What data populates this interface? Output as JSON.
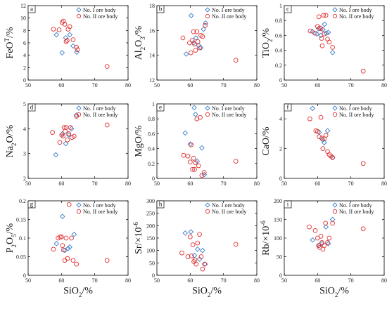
{
  "chart_data": [
    {
      "id": "a",
      "type": "scatter",
      "ylabel": {
        "base": "FeO",
        "sup": "T",
        "suffix": "/%"
      },
      "xlim": [
        50,
        80
      ],
      "ylim": [
        0,
        12
      ],
      "xticks": [
        50,
        60,
        70,
        80
      ],
      "yticks": [
        0,
        2,
        4,
        6,
        8,
        10,
        12
      ],
      "series": [
        {
          "name": "No. I ore body",
          "marker": "diamond",
          "color": "#3a7fc8",
          "points": [
            [
              58.5,
              7.3
            ],
            [
              60.2,
              4.4
            ],
            [
              61.3,
              6.8
            ],
            [
              62.5,
              7.3
            ],
            [
              63.5,
              5.5
            ],
            [
              64.6,
              4.5
            ]
          ]
        },
        {
          "name": "No. II ore body",
          "marker": "circle",
          "color": "#e03030",
          "points": [
            [
              57.6,
              8.2
            ],
            [
              59.3,
              8.1
            ],
            [
              60.2,
              9.3
            ],
            [
              60.6,
              9.5
            ],
            [
              61.0,
              9.0
            ],
            [
              61.4,
              6.2
            ],
            [
              61.7,
              6.4
            ],
            [
              62.0,
              8.2
            ],
            [
              62.5,
              8.6
            ],
            [
              63.5,
              6.5
            ],
            [
              64.5,
              5.3
            ],
            [
              64.8,
              4.9
            ],
            [
              73.7,
              2.2
            ]
          ]
        }
      ],
      "legend": "top-right"
    },
    {
      "id": "b",
      "type": "scatter",
      "ylabel": {
        "base": "Al",
        "sub": "2",
        "base2": "O",
        "sub2": "3",
        "suffix": "/%"
      },
      "xlim": [
        50,
        80
      ],
      "ylim": [
        12,
        18
      ],
      "xticks": [
        50,
        60,
        70,
        80
      ],
      "yticks": [
        12,
        14,
        16,
        18
      ],
      "series": [
        {
          "name": "No. I ore body",
          "marker": "diamond",
          "color": "#3a7fc8",
          "points": [
            [
              58.8,
              14.1
            ],
            [
              60.3,
              17.2
            ],
            [
              61.0,
              15.0
            ],
            [
              61.7,
              15.4
            ],
            [
              62.5,
              14.8
            ],
            [
              63.2,
              14.6
            ],
            [
              64.0,
              16.1
            ],
            [
              64.6,
              16.6
            ]
          ]
        },
        {
          "name": "No. II ore body",
          "marker": "circle",
          "color": "#e03030",
          "points": [
            [
              57.8,
              15.4
            ],
            [
              59.8,
              15.0
            ],
            [
              60.2,
              14.2
            ],
            [
              60.6,
              15.2
            ],
            [
              61.0,
              15.9
            ],
            [
              61.3,
              14.9
            ],
            [
              61.6,
              14.4
            ],
            [
              62.0,
              15.9
            ],
            [
              62.3,
              15.1
            ],
            [
              62.8,
              14.6
            ],
            [
              63.2,
              15.6
            ],
            [
              63.7,
              15.5
            ],
            [
              64.5,
              16.4
            ],
            [
              73.7,
              13.6
            ]
          ]
        }
      ],
      "legend": "top-right"
    },
    {
      "id": "c",
      "type": "scatter",
      "ylabel": {
        "base": "TiO",
        "sub": "2",
        "suffix": "/%"
      },
      "xlim": [
        50,
        80
      ],
      "ylim": [
        0,
        1.0
      ],
      "xticks": [
        50,
        60,
        70,
        80
      ],
      "yticks": [
        0,
        0.2,
        0.4,
        0.6,
        0.8,
        1.0
      ],
      "series": [
        {
          "name": "No. I ore body",
          "marker": "diamond",
          "color": "#3a7fc8",
          "points": [
            [
              58.5,
              0.65
            ],
            [
              59.8,
              0.62
            ],
            [
              60.3,
              0.69
            ],
            [
              61.0,
              0.6
            ],
            [
              61.6,
              0.68
            ],
            [
              62.1,
              0.75
            ],
            [
              62.6,
              0.63
            ],
            [
              63.2,
              0.64
            ],
            [
              64.5,
              0.37
            ]
          ]
        },
        {
          "name": "No. II ore body",
          "marker": "circle",
          "color": "#e03030",
          "points": [
            [
              57.8,
              0.66
            ],
            [
              59.2,
              0.63
            ],
            [
              60.0,
              0.72
            ],
            [
              60.4,
              0.85
            ],
            [
              60.7,
              0.7
            ],
            [
              61.0,
              0.69
            ],
            [
              61.2,
              0.56
            ],
            [
              61.4,
              0.46
            ],
            [
              61.8,
              0.87
            ],
            [
              62.0,
              0.62
            ],
            [
              62.5,
              0.87
            ],
            [
              63.0,
              0.55
            ],
            [
              63.5,
              0.51
            ],
            [
              64.5,
              0.44
            ],
            [
              73.7,
              0.12
            ]
          ]
        }
      ],
      "legend": "top-right"
    },
    {
      "id": "d",
      "type": "scatter",
      "ylabel": {
        "base": "Na",
        "sub": "2",
        "base2": "O",
        "suffix": "/%"
      },
      "xlim": [
        50,
        80
      ],
      "ylim": [
        2,
        5
      ],
      "xticks": [
        50,
        60,
        70,
        80
      ],
      "yticks": [
        2,
        3,
        4,
        5
      ],
      "series": [
        {
          "name": "No. I ore body",
          "marker": "diamond",
          "color": "#3a7fc8",
          "points": [
            [
              58.3,
              2.95
            ],
            [
              60.3,
              3.8
            ],
            [
              61.3,
              3.4
            ],
            [
              62.2,
              3.75
            ],
            [
              63.0,
              4.0
            ],
            [
              64.5,
              4.55
            ]
          ]
        },
        {
          "name": "No. II ore body",
          "marker": "circle",
          "color": "#e03030",
          "points": [
            [
              57.3,
              3.85
            ],
            [
              59.5,
              3.45
            ],
            [
              60.1,
              3.75
            ],
            [
              60.5,
              3.7
            ],
            [
              60.8,
              4.05
            ],
            [
              61.1,
              3.9
            ],
            [
              61.4,
              4.05
            ],
            [
              61.8,
              3.55
            ],
            [
              62.2,
              3.8
            ],
            [
              62.7,
              4.05
            ],
            [
              63.2,
              3.65
            ],
            [
              63.8,
              3.7
            ],
            [
              64.5,
              4.5
            ],
            [
              73.7,
              4.15
            ]
          ]
        }
      ],
      "legend": "top-right"
    },
    {
      "id": "e",
      "type": "scatter",
      "ylabel": {
        "base": "MgO",
        "suffix": "/%"
      },
      "xlim": [
        50,
        80
      ],
      "ylim": [
        0,
        1.0
      ],
      "xticks": [
        50,
        60,
        70,
        80
      ],
      "yticks": [
        0,
        0.2,
        0.4,
        0.6,
        0.8,
        1.0
      ],
      "series": [
        {
          "name": "No. I ore body",
          "marker": "diamond",
          "color": "#3a7fc8",
          "points": [
            [
              58.5,
              0.61
            ],
            [
              60.0,
              0.46
            ],
            [
              61.2,
              0.95
            ],
            [
              61.6,
              0.86
            ],
            [
              62.1,
              0.23
            ],
            [
              63.5,
              0.41
            ],
            [
              64.2,
              0.05
            ]
          ]
        },
        {
          "name": "No. II ore body",
          "marker": "circle",
          "color": "#e03030",
          "points": [
            [
              58.0,
              0.31
            ],
            [
              59.3,
              0.3
            ],
            [
              60.0,
              0.22
            ],
            [
              60.3,
              0.45
            ],
            [
              60.7,
              0.12
            ],
            [
              61.0,
              0.27
            ],
            [
              61.3,
              0.12
            ],
            [
              61.6,
              0.21
            ],
            [
              62.0,
              0.8
            ],
            [
              62.5,
              0.17
            ],
            [
              63.0,
              0.82
            ],
            [
              63.5,
              0.04
            ],
            [
              64.2,
              0.08
            ],
            [
              73.7,
              0.23
            ]
          ]
        }
      ],
      "legend": "top-right"
    },
    {
      "id": "f",
      "type": "scatter",
      "ylabel": {
        "base": "CaO",
        "suffix": "/%"
      },
      "xlim": [
        50,
        80
      ],
      "ylim": [
        0,
        5
      ],
      "xticks": [
        50,
        60,
        70,
        80
      ],
      "yticks": [
        0,
        2,
        4
      ],
      "series": [
        {
          "name": "No. I ore body",
          "marker": "diamond",
          "color": "#3a7fc8",
          "points": [
            [
              58.5,
              4.7
            ],
            [
              60.5,
              3.1
            ],
            [
              61.5,
              2.6
            ],
            [
              62.0,
              2.4
            ],
            [
              63.0,
              3.2
            ],
            [
              64.5,
              1.4
            ]
          ]
        },
        {
          "name": "No. II ore body",
          "marker": "circle",
          "color": "#e03030",
          "points": [
            [
              57.7,
              4.0
            ],
            [
              59.5,
              3.2
            ],
            [
              60.0,
              3.15
            ],
            [
              60.5,
              2.8
            ],
            [
              61.0,
              4.1
            ],
            [
              61.3,
              2.7
            ],
            [
              61.6,
              2.0
            ],
            [
              62.0,
              2.65
            ],
            [
              62.5,
              2.9
            ],
            [
              63.0,
              1.8
            ],
            [
              63.5,
              1.6
            ],
            [
              64.0,
              1.5
            ],
            [
              64.5,
              1.4
            ],
            [
              73.7,
              1.0
            ]
          ]
        }
      ],
      "legend": "top-right"
    },
    {
      "id": "g",
      "type": "scatter",
      "ylabel": {
        "base": "P",
        "sub": "2",
        "base2": "O",
        "sub2": "5",
        "suffix": "/%"
      },
      "xlim": [
        50,
        80
      ],
      "ylim": [
        0,
        0.2
      ],
      "xticks": [
        50,
        60,
        70,
        80
      ],
      "yticks": [
        0,
        0.05,
        0.1,
        0.15,
        0.2
      ],
      "series": [
        {
          "name": "No. I ore body",
          "marker": "diamond",
          "color": "#3a7fc8",
          "points": [
            [
              58.5,
              0.085
            ],
            [
              60.3,
              0.158
            ],
            [
              61.0,
              0.067
            ],
            [
              62.0,
              0.072
            ],
            [
              62.5,
              0.076
            ],
            [
              63.8,
              0.11
            ]
          ]
        },
        {
          "name": "No. II ore body",
          "marker": "circle",
          "color": "#e03030",
          "points": [
            [
              57.6,
              0.07
            ],
            [
              59.0,
              0.1
            ],
            [
              59.6,
              0.103
            ],
            [
              60.0,
              0.103
            ],
            [
              60.3,
              0.08
            ],
            [
              60.6,
              0.068
            ],
            [
              61.0,
              0.04
            ],
            [
              61.4,
              0.1
            ],
            [
              61.8,
              0.045
            ],
            [
              62.3,
              0.19
            ],
            [
              63.0,
              0.1
            ],
            [
              63.5,
              0.04
            ],
            [
              64.5,
              0.03
            ],
            [
              73.7,
              0.04
            ]
          ]
        }
      ],
      "legend": "top-right"
    },
    {
      "id": "h",
      "type": "scatter",
      "ylabel": {
        "base": "Sr/×10",
        "sup": "-6"
      },
      "xlim": [
        50,
        80
      ],
      "ylim": [
        0,
        300
      ],
      "xticks": [
        50,
        60,
        70,
        80
      ],
      "yticks": [
        0,
        50,
        100,
        150,
        200,
        250,
        300
      ],
      "series": [
        {
          "name": "No. I ore body",
          "marker": "diamond",
          "color": "#3a7fc8",
          "points": [
            [
              58.5,
              170
            ],
            [
              60.2,
              175
            ],
            [
              61.3,
              80
            ],
            [
              62.2,
              105
            ],
            [
              62.8,
              65
            ],
            [
              63.7,
              100
            ],
            [
              64.5,
              45
            ]
          ]
        },
        {
          "name": "No. II ore body",
          "marker": "circle",
          "color": "#e03030",
          "points": [
            [
              57.5,
              90
            ],
            [
              59.3,
              75
            ],
            [
              60.0,
              155
            ],
            [
              60.4,
              78
            ],
            [
              60.8,
              123
            ],
            [
              61.1,
              55
            ],
            [
              61.4,
              62
            ],
            [
              61.8,
              45
            ],
            [
              62.2,
              130
            ],
            [
              62.8,
              165
            ],
            [
              63.3,
              75
            ],
            [
              63.7,
              25
            ],
            [
              64.3,
              45
            ],
            [
              73.7,
              125
            ]
          ]
        }
      ],
      "legend": "top-right"
    },
    {
      "id": "i",
      "type": "scatter",
      "ylabel": {
        "base": "Rb/×10",
        "sup": "-6"
      },
      "xlim": [
        50,
        80
      ],
      "ylim": [
        0,
        200
      ],
      "xticks": [
        50,
        60,
        70,
        80
      ],
      "yticks": [
        0,
        50,
        100,
        150,
        200
      ],
      "series": [
        {
          "name": "No. I ore body",
          "marker": "diamond",
          "color": "#3a7fc8",
          "points": [
            [
              58.5,
              95
            ],
            [
              60.5,
              80
            ],
            [
              61.3,
              85
            ],
            [
              62.5,
              130
            ],
            [
              63.2,
              85
            ],
            [
              64.5,
              150
            ]
          ]
        },
        {
          "name": "No. II ore body",
          "marker": "circle",
          "color": "#e03030",
          "points": [
            [
              57.5,
              130
            ],
            [
              59.3,
              120
            ],
            [
              60.0,
              100
            ],
            [
              60.3,
              80
            ],
            [
              60.6,
              75
            ],
            [
              61.0,
              105
            ],
            [
              61.3,
              88
            ],
            [
              61.6,
              70
            ],
            [
              62.0,
              80
            ],
            [
              62.4,
              140
            ],
            [
              63.0,
              88
            ],
            [
              63.5,
              100
            ],
            [
              64.5,
              140
            ],
            [
              73.7,
              125
            ]
          ]
        }
      ],
      "legend": "top-right"
    }
  ],
  "shared_xlabel": {
    "base": "SiO",
    "sub": "2",
    "suffix": "/%"
  }
}
